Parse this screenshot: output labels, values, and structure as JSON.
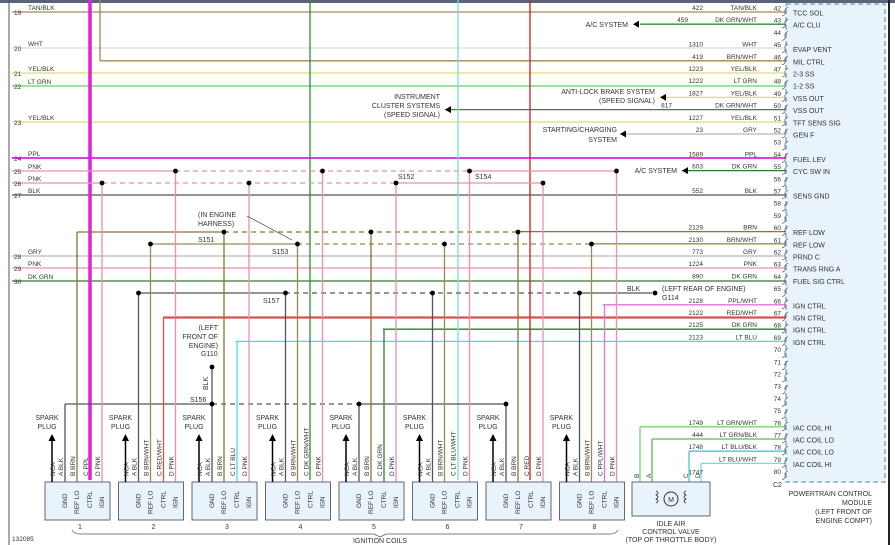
{
  "figure_id": "132085",
  "wire_colors": {
    "TAN/BLK": "#a08c5c",
    "WHT": "#d9d9d9",
    "YEL/BLK": "#e3dc6a",
    "LT GRN": "#5fd35f",
    "PPL": "#e020e0",
    "PNK": "#ee8fa8",
    "BLK": "#555555",
    "GRY": "#b8b8b8",
    "DK GRN": "#2e7d2e",
    "DK GRN/WHT": "#2e8b2e",
    "BRN": "#8b7434",
    "BRN/WHT": "#9c8a50",
    "RED/WHT": "#d85050",
    "RED": "#c81e1e",
    "LT BLU": "#4fd8e0",
    "LT BLU/WHT": "#6fe0e6",
    "LT BLU/BLK": "#44c8d8",
    "PPL/WHT": "#e070e0",
    "LT GRN/WHT": "#70d870",
    "LT GRN/BLK": "#50c050"
  },
  "left_wires": [
    {
      "num": "19",
      "color": "TAN/BLK"
    },
    {
      "num": "20",
      "color": "WHT"
    },
    {
      "num": "21",
      "color": "YEL/BLK"
    },
    {
      "num": "22",
      "color": "LT GRN"
    },
    {
      "num": "23",
      "color": "YEL/BLK"
    },
    {
      "num": "24",
      "color": "PPL"
    },
    {
      "num": "25",
      "color": "PNK"
    },
    {
      "num": "26",
      "color": "PNK"
    },
    {
      "num": "27",
      "color": "BLK"
    },
    {
      "num": "28",
      "color": "GRY"
    },
    {
      "num": "29",
      "color": "PNK"
    },
    {
      "num": "30",
      "color": "DK GRN"
    }
  ],
  "pcm": {
    "label": [
      "POWERTRAIN CONTROL",
      "MODULE",
      "(LEFT FRONT OF",
      "ENGINE COMPT)"
    ],
    "connector": "C2",
    "pins": [
      {
        "pin": "42",
        "circuit": "422",
        "color": "TAN/BLK",
        "function": "TCC SOL"
      },
      {
        "pin": "43",
        "circuit": "459",
        "color": "DK GRN/WHT",
        "function": "A/C CLU"
      },
      {
        "pin": "44",
        "circuit": "",
        "color": "",
        "function": ""
      },
      {
        "pin": "45",
        "circuit": "1310",
        "color": "WHT",
        "function": "EVAP VENT"
      },
      {
        "pin": "46",
        "circuit": "419",
        "color": "BRN/WHT",
        "function": "MIL CTRL"
      },
      {
        "pin": "47",
        "circuit": "1223",
        "color": "YEL/BLK",
        "function": "2-3 SS"
      },
      {
        "pin": "48",
        "circuit": "1222",
        "color": "LT GRN",
        "function": "1-2 SS"
      },
      {
        "pin": "49",
        "circuit": "1827",
        "color": "YEL/BLK",
        "function": "VSS OUT"
      },
      {
        "pin": "50",
        "circuit": "817",
        "color": "DK GRN/WHT",
        "function": "VSS OUT"
      },
      {
        "pin": "51",
        "circuit": "1227",
        "color": "YEL/BLK",
        "function": "TFT SENS SIG"
      },
      {
        "pin": "52",
        "circuit": "23",
        "color": "GRY",
        "function": "GEN F"
      },
      {
        "pin": "53",
        "circuit": "",
        "color": "",
        "function": ""
      },
      {
        "pin": "54",
        "circuit": "1589",
        "color": "PPL",
        "function": "FUEL LEV"
      },
      {
        "pin": "55",
        "circuit": "603",
        "color": "DK GRN",
        "function": "CYC SW IN"
      },
      {
        "pin": "56",
        "circuit": "",
        "color": "",
        "function": ""
      },
      {
        "pin": "57",
        "circuit": "552",
        "color": "BLK",
        "function": "SENS GND"
      },
      {
        "pin": "58",
        "circuit": "",
        "color": "",
        "function": ""
      },
      {
        "pin": "59",
        "circuit": "",
        "color": "",
        "function": ""
      },
      {
        "pin": "60",
        "circuit": "2129",
        "color": "BRN",
        "function": "REF LOW"
      },
      {
        "pin": "61",
        "circuit": "2130",
        "color": "BRN/WHT",
        "function": "REF LOW"
      },
      {
        "pin": "62",
        "circuit": "773",
        "color": "GRY",
        "function": "PRND C"
      },
      {
        "pin": "63",
        "circuit": "1224",
        "color": "PNK",
        "function": "TRANS RNG A"
      },
      {
        "pin": "64",
        "circuit": "890",
        "color": "DK GRN",
        "function": "FUEL SIG CTRL"
      },
      {
        "pin": "65",
        "circuit": "",
        "color": "",
        "function": ""
      },
      {
        "pin": "66",
        "circuit": "2128",
        "color": "PPL/WHT",
        "function": "IGN CTRL"
      },
      {
        "pin": "67",
        "circuit": "2122",
        "color": "RED/WHT",
        "function": "IGN CTRL"
      },
      {
        "pin": "68",
        "circuit": "2125",
        "color": "DK GRN",
        "function": "IGN CTRL"
      },
      {
        "pin": "69",
        "circuit": "2123",
        "color": "LT BLU",
        "function": "IGN CTRL"
      },
      {
        "pin": "70",
        "circuit": "",
        "color": "",
        "function": ""
      },
      {
        "pin": "71",
        "circuit": "",
        "color": "",
        "function": ""
      },
      {
        "pin": "72",
        "circuit": "",
        "color": "",
        "function": ""
      },
      {
        "pin": "73",
        "circuit": "",
        "color": "",
        "function": ""
      },
      {
        "pin": "74",
        "circuit": "",
        "color": "",
        "function": ""
      },
      {
        "pin": "75",
        "circuit": "",
        "color": "",
        "function": ""
      },
      {
        "pin": "76",
        "circuit": "1749",
        "color": "LT GRN/WHT",
        "function": "IAC COIL HI"
      },
      {
        "pin": "77",
        "circuit": "444",
        "color": "LT GRN/BLK",
        "function": "IAC COIL LO"
      },
      {
        "pin": "78",
        "circuit": "1748",
        "color": "LT BLU/BLK",
        "function": "IAC COIL LO"
      },
      {
        "pin": "79",
        "circuit": "1747",
        "color": "LT BLU/WHT",
        "function": "IAC COIL HI"
      },
      {
        "pin": "80",
        "circuit": "",
        "color": "",
        "function": ""
      }
    ]
  },
  "destinations": {
    "ac_system_1": "A/C SYSTEM",
    "abs": [
      "ANTI-LOCK BRAKE SYSTEM",
      "(SPEED SIGNAL)"
    ],
    "instrument_cluster": [
      "INSTRUMENT",
      "CLUSTER SYSTEMS",
      "(SPEED SIGNAL)"
    ],
    "starting_charging": [
      "STARTING/CHARGING",
      "SYSTEM"
    ],
    "ac_system_2": "A/C SYSTEM"
  },
  "splices": {
    "s151": "S151",
    "s152": "S152",
    "s153": "S153",
    "s154": "S154",
    "s156": "S156",
    "s157": "S157",
    "g110": "G110",
    "g114": "G114",
    "in_engine_harness": [
      "(IN ENGINE",
      "HARNESS)"
    ],
    "left_front_engine": [
      "(LEFT",
      "FRONT OF",
      "ENGINE)"
    ],
    "left_rear_engine": "(LEFT REAR OF ENGINE)",
    "blk": "BLK"
  },
  "ignition_coils": {
    "label": "IGNITION COILS",
    "spark_plug": [
      "SPARK",
      "PLUG"
    ],
    "terminals": [
      "GND",
      "REF LO",
      "CTRL",
      "IGN"
    ],
    "coils": [
      {
        "num": "1",
        "pins": [
          "NCA",
          "A BLK",
          "B BRN",
          "C PPL",
          "D PNK"
        ]
      },
      {
        "num": "2",
        "pins": [
          "NCA",
          "A BLK",
          "B BRN/WHT",
          "C RED/WHT",
          "D PNK"
        ]
      },
      {
        "num": "3",
        "pins": [
          "NCA",
          "A BLK",
          "B BRN",
          "C LT BLU",
          "D PNK"
        ]
      },
      {
        "num": "4",
        "pins": [
          "NCA",
          "A BLK",
          "B BRN/WHT",
          "C DK GRN/WHT",
          "D PNK"
        ]
      },
      {
        "num": "5",
        "pins": [
          "NCA",
          "A BLK",
          "B BRN",
          "C DK GRN",
          "D PNK"
        ]
      },
      {
        "num": "6",
        "pins": [
          "NCA",
          "A BLK",
          "B BRN/WHT",
          "C LT BLU/WHT",
          "D PNK"
        ]
      },
      {
        "num": "7",
        "pins": [
          "NCA",
          "A BLK",
          "B BRN",
          "C RED",
          "D PNK"
        ]
      },
      {
        "num": "8",
        "pins": [
          "NCA",
          "A BLK",
          "B BRN/WHT",
          "C PPL/WHT",
          "D PNK"
        ]
      }
    ]
  },
  "iac_valve": {
    "label": [
      "IDLE AIR",
      "CONTROL VALVE",
      "(TOP OF THROTTLE BODY)"
    ],
    "pins": [
      "B",
      "A",
      "C",
      "D"
    ],
    "motor": "M"
  }
}
